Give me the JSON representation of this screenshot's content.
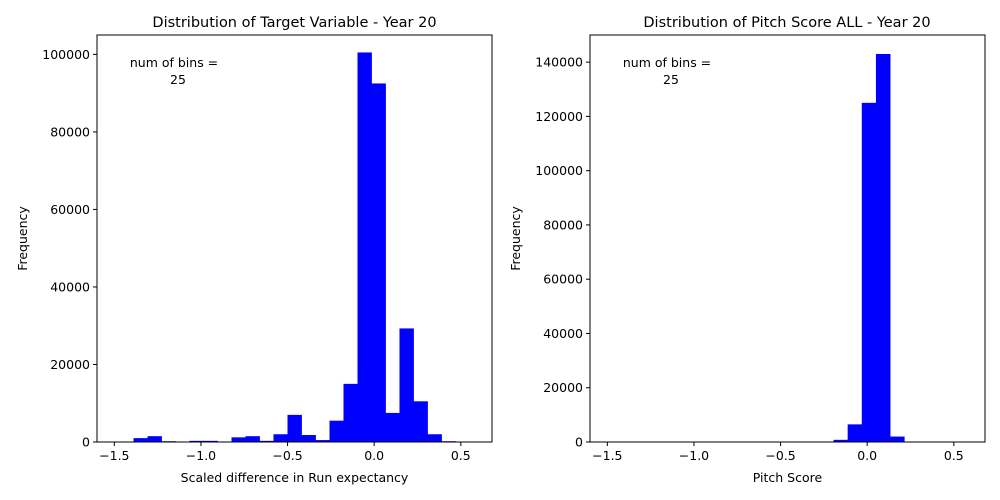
{
  "chart_data": [
    {
      "type": "bar",
      "title": "Distribution of Target Variable - Year 20",
      "xlabel": "Scaled difference in Run expectancy",
      "ylabel": "Frequency",
      "annotation_line1": "num of bins =",
      "annotation_line2": "25",
      "xlim": [
        -1.6,
        0.68
      ],
      "ylim": [
        0,
        105000
      ],
      "xticks": [
        -1.5,
        -1.0,
        -0.5,
        0.0,
        0.5
      ],
      "xtick_labels": [
        "−1.5",
        "−1.0",
        "−0.5",
        "0.0",
        "0.5"
      ],
      "yticks": [
        0,
        20000,
        40000,
        60000,
        80000,
        100000
      ],
      "ytick_labels": [
        "0",
        "20000",
        "40000",
        "60000",
        "80000",
        "100000"
      ],
      "bar_color": "#0000ff",
      "bin_start": -1.47,
      "bin_width": 0.0808,
      "values": [
        0,
        1000,
        1500,
        200,
        0,
        300,
        300,
        0,
        1200,
        1500,
        300,
        2000,
        7000,
        1800,
        500,
        5500,
        15000,
        100500,
        92500,
        7500,
        29300,
        10500,
        2000,
        200,
        0
      ]
    },
    {
      "type": "bar",
      "title": "Distribution of Pitch Score ALL - Year 20",
      "xlabel": "Pitch Score",
      "ylabel": "Frequency",
      "annotation_line1": "num of bins =",
      "annotation_line2": "25",
      "xlim": [
        -1.6,
        0.68
      ],
      "ylim": [
        0,
        150000
      ],
      "xticks": [
        -1.5,
        -1.0,
        -0.5,
        0.0,
        0.5
      ],
      "xtick_labels": [
        "−1.5",
        "−1.0",
        "−0.5",
        "0.0",
        "0.5"
      ],
      "yticks": [
        0,
        20000,
        40000,
        60000,
        80000,
        100000,
        120000,
        140000
      ],
      "ytick_labels": [
        "0",
        "20000",
        "40000",
        "60000",
        "80000",
        "100000",
        "120000",
        "140000"
      ],
      "bar_color": "#0000ff",
      "bin_start": -1.5,
      "bin_width": 0.0816,
      "values": [
        0,
        0,
        0,
        0,
        0,
        0,
        0,
        0,
        0,
        0,
        0,
        0,
        0,
        0,
        0,
        0,
        800,
        6500,
        125000,
        143000,
        2000,
        0,
        0,
        0,
        0
      ]
    }
  ]
}
